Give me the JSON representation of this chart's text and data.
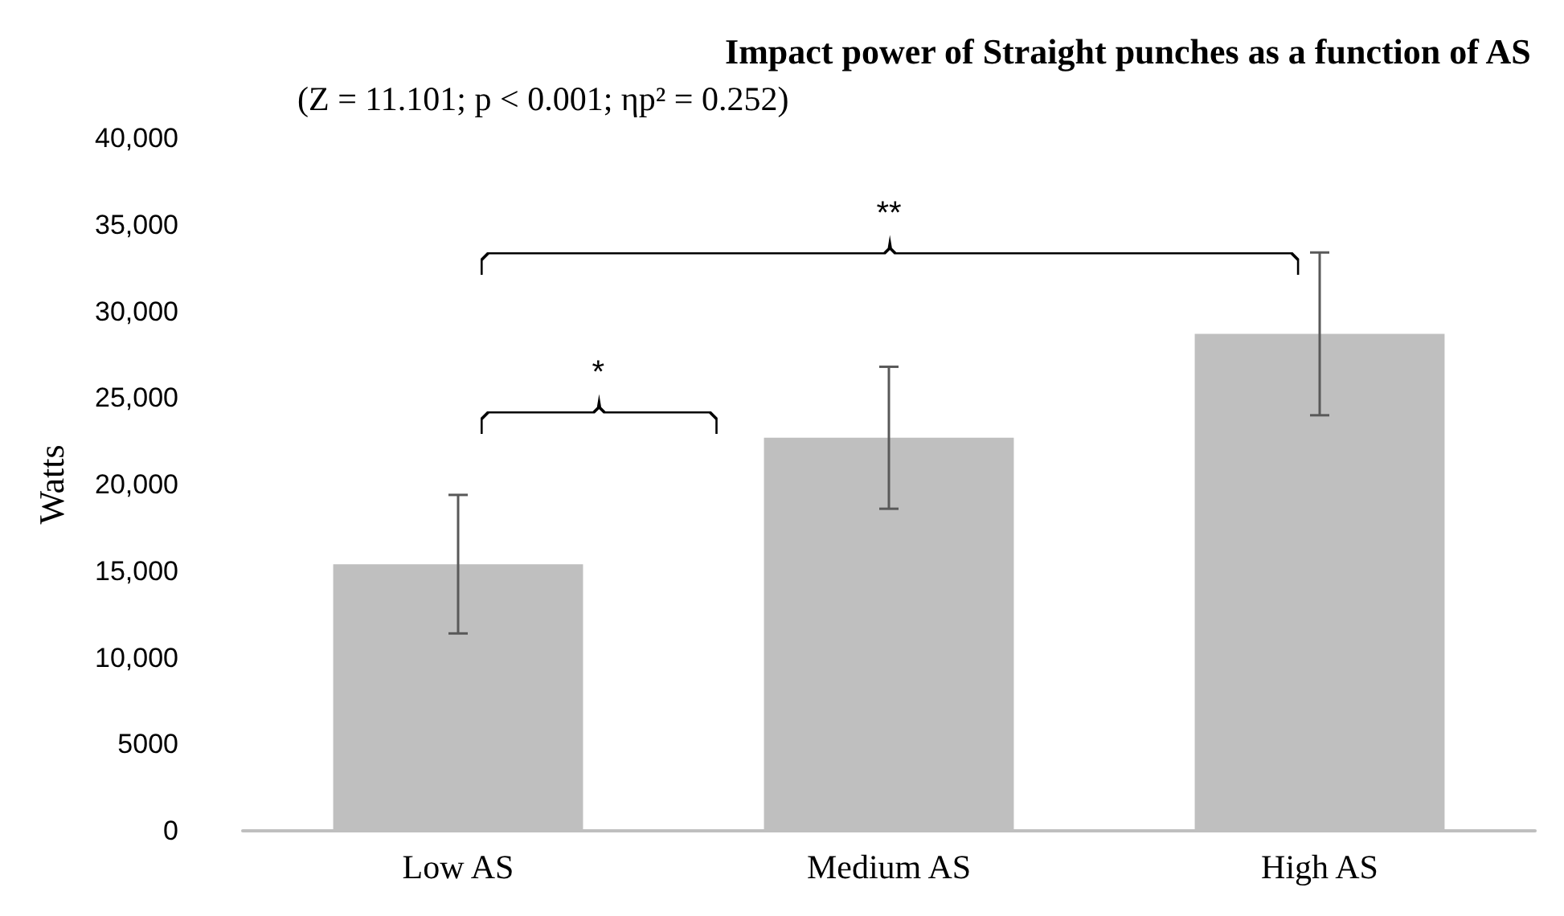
{
  "chart_data": {
    "type": "bar",
    "title": "Impact power of Straight punches as a function of AS",
    "subtitle": "(Z = 11.101; p < 0.001; ηp² = 0.252)",
    "ylabel": "Watts",
    "categories": [
      "Low AS",
      "Medium AS",
      "High AS"
    ],
    "values": [
      15400,
      22700,
      28700
    ],
    "errors": [
      4000,
      4100,
      4700
    ],
    "color": "#bfbfbf",
    "ylim": [
      0,
      40000
    ],
    "yticks": [
      {
        "value": 0,
        "label": "0"
      },
      {
        "value": 5000,
        "label": "5000"
      },
      {
        "value": 10000,
        "label": "10,000"
      },
      {
        "value": 15000,
        "label": "15,000"
      },
      {
        "value": 20000,
        "label": "20,000"
      },
      {
        "value": 25000,
        "label": "25,000"
      },
      {
        "value": 30000,
        "label": "30,000"
      },
      {
        "value": 35000,
        "label": "35,000"
      },
      {
        "value": 40000,
        "label": "40,000"
      }
    ],
    "grid": false,
    "annotations": [
      "*",
      "**"
    ]
  }
}
